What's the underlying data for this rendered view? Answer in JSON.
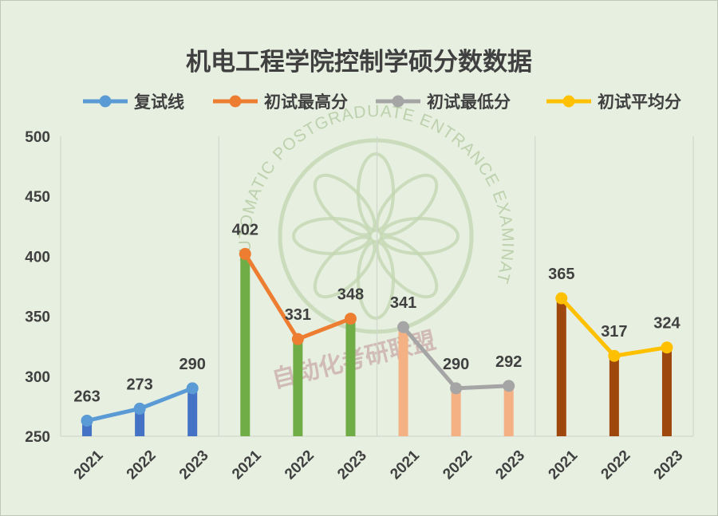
{
  "chart_data": {
    "type": "line",
    "title": "机电工程学院控制学硕分数数据",
    "ylim": [
      250,
      500
    ],
    "yticks": [
      250,
      300,
      350,
      400,
      450,
      500
    ],
    "grid": false,
    "legend_position": "top",
    "groups": [
      {
        "series": "复试线",
        "line_color": "#5b9bd5",
        "bar_color": "#4472c4",
        "categories": [
          "2021",
          "2022",
          "2023"
        ],
        "values": [
          263,
          273,
          290
        ]
      },
      {
        "series": "初试最高分",
        "line_color": "#ed7d31",
        "bar_color": "#70ad47",
        "categories": [
          "2021",
          "2022",
          "2023"
        ],
        "values": [
          402,
          331,
          348
        ]
      },
      {
        "series": "初试最低分",
        "line_color": "#a5a5a5",
        "bar_color": "#f4b183",
        "categories": [
          "2021",
          "2022",
          "2023"
        ],
        "values": [
          341,
          290,
          292
        ]
      },
      {
        "series": "初试平均分",
        "line_color": "#ffc000",
        "bar_color": "#9e480e",
        "categories": [
          "2021",
          "2022",
          "2023"
        ],
        "values": [
          365,
          317,
          324
        ]
      }
    ]
  },
  "watermark": {
    "ring_text": "AUTOMATIC POSTGRADUATE ENTRANCE EXAMINATION ALLIANCE",
    "center_text": "自动化考研联盟"
  }
}
